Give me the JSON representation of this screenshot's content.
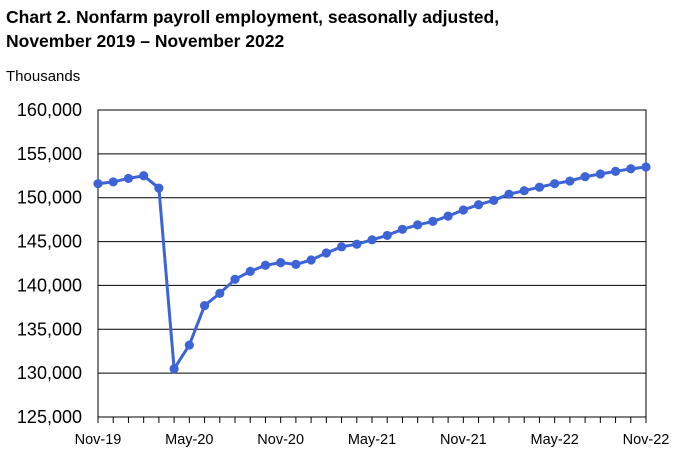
{
  "chart_data": {
    "type": "line",
    "title_line1": "Chart 2. Nonfarm payroll employment, seasonally adjusted,",
    "title_line2": "November 2019 – November 2022",
    "ylabel": "Thousands",
    "xlabel": "",
    "ylim": [
      125000,
      160000
    ],
    "y_ticks": [
      "125,000",
      "130,000",
      "135,000",
      "140,000",
      "145,000",
      "150,000",
      "155,000",
      "160,000"
    ],
    "x_tick_labels": [
      "Nov-19",
      "May-20",
      "Nov-20",
      "May-21",
      "Nov-21",
      "May-22",
      "Nov-22"
    ],
    "grid": true,
    "legend": "none",
    "line_color": "#3d64d6",
    "series": [
      {
        "x": [
          "Nov-19",
          "Dec-19",
          "Jan-20",
          "Feb-20",
          "Mar-20",
          "Apr-20",
          "May-20",
          "Jun-20",
          "Jul-20",
          "Aug-20",
          "Sep-20",
          "Oct-20",
          "Nov-20",
          "Dec-20",
          "Jan-21",
          "Feb-21",
          "Mar-21",
          "Apr-21",
          "May-21",
          "Jun-21",
          "Jul-21",
          "Aug-21",
          "Sep-21",
          "Oct-21",
          "Nov-21",
          "Dec-21",
          "Jan-22",
          "Feb-22",
          "Mar-22",
          "Apr-22",
          "May-22",
          "Jun-22",
          "Jul-22",
          "Aug-22",
          "Sep-22",
          "Oct-22",
          "Nov-22"
        ],
        "values": [
          151600,
          151800,
          152200,
          152500,
          151100,
          130500,
          133200,
          137700,
          139100,
          140700,
          141600,
          142300,
          142600,
          142400,
          142900,
          143700,
          144400,
          144700,
          145200,
          145700,
          146400,
          146900,
          147300,
          147900,
          148600,
          149200,
          149700,
          150400,
          150800,
          151200,
          151600,
          151900,
          152400,
          152700,
          153000,
          153300,
          153500
        ]
      }
    ]
  }
}
